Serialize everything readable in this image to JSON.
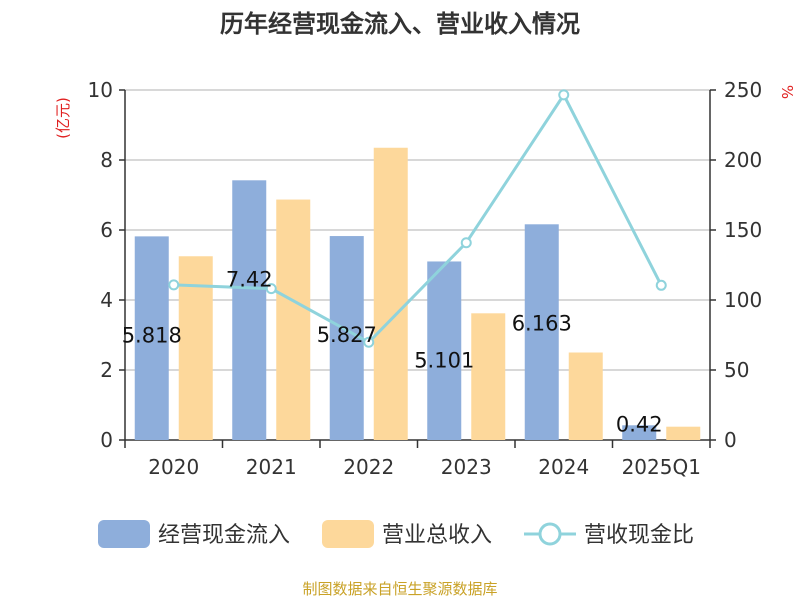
{
  "chart_data": {
    "type": "bar",
    "title": "历年经营现金流入、营业收入情况",
    "categories": [
      "2020",
      "2021",
      "2022",
      "2023",
      "2024",
      "2025Q1"
    ],
    "left_axis": {
      "label": "(亿元)",
      "range": [
        0,
        10
      ],
      "ticks": [
        "0",
        "2",
        "4",
        "6",
        "8",
        "10"
      ]
    },
    "right_axis": {
      "label": "%",
      "range": [
        0,
        250
      ],
      "ticks": [
        "0",
        "50",
        "100",
        "150",
        "200",
        "250"
      ]
    },
    "grid": true,
    "legend_placement": "bottom",
    "series": [
      {
        "name": "经营现金流入",
        "type": "bar",
        "axis": "left",
        "color": "#8eaedb",
        "values": [
          5.818,
          7.42,
          5.827,
          5.101,
          6.163,
          0.42
        ],
        "labels": [
          "5.818",
          "7.42",
          "5.827",
          "5.101",
          "6.163",
          "0.42"
        ]
      },
      {
        "name": "营业总收入",
        "type": "bar",
        "axis": "left",
        "color": "#fdd89b",
        "values": [
          5.25,
          6.87,
          8.35,
          3.62,
          2.5,
          0.38
        ]
      },
      {
        "name": "营收现金比",
        "type": "line",
        "axis": "right",
        "color": "#8fd3dc",
        "values": [
          110.8,
          108.1,
          69.8,
          140.9,
          246.5,
          110.5
        ]
      }
    ]
  },
  "footer": {
    "source": "制图数据来自恒生聚源数据库"
  }
}
